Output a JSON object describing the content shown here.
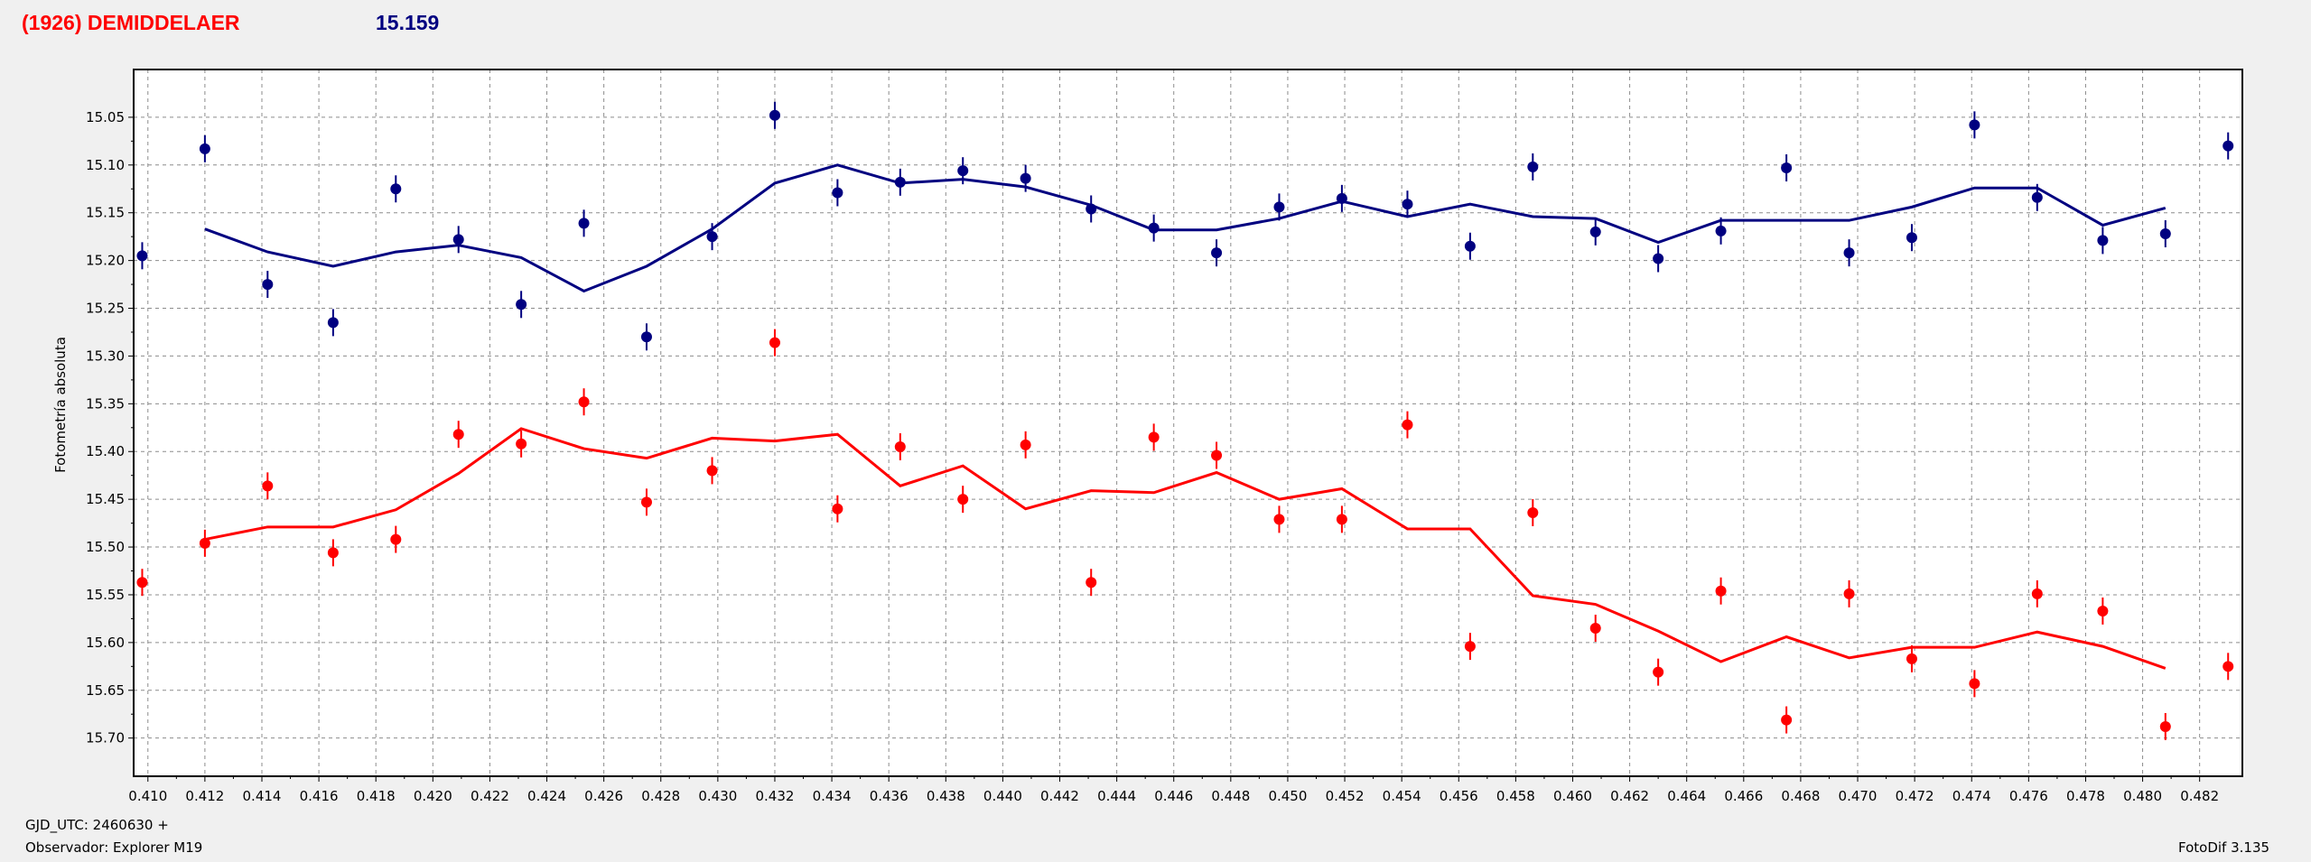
{
  "header": {
    "object_name": "(1926) DEMIDDELAER",
    "magnitude": "15.159"
  },
  "footer": {
    "gjd_label": "GJD_UTC: 2460630 +",
    "observer_label": "Observador: Explorer M19",
    "version_label": "FotoDif 3.135"
  },
  "chart_data": {
    "type": "scatter",
    "ylabel": "Fotometría absoluta",
    "xlim": [
      0.4095,
      0.4835
    ],
    "ylim": [
      15.0,
      15.74
    ],
    "y_inverted": true,
    "grid": true,
    "x_ticks": [
      "0.410",
      "0.412",
      "0.414",
      "0.416",
      "0.418",
      "0.420",
      "0.422",
      "0.424",
      "0.426",
      "0.428",
      "0.430",
      "0.432",
      "0.434",
      "0.436",
      "0.438",
      "0.440",
      "0.442",
      "0.444",
      "0.446",
      "0.448",
      "0.450",
      "0.452",
      "0.454",
      "0.456",
      "0.458",
      "0.460",
      "0.462",
      "0.464",
      "0.466",
      "0.468",
      "0.470",
      "0.472",
      "0.474",
      "0.476",
      "0.478",
      "0.480",
      "0.482"
    ],
    "y_ticks": [
      "15.05",
      "15.10",
      "15.15",
      "15.20",
      "15.25",
      "15.30",
      "15.35",
      "15.40",
      "15.45",
      "15.50",
      "15.55",
      "15.60",
      "15.65",
      "15.70"
    ],
    "series": [
      {
        "color": "#000080",
        "points": [
          [
            0.4098,
            15.195
          ],
          [
            0.412,
            15.083
          ],
          [
            0.4142,
            15.225
          ],
          [
            0.4165,
            15.265
          ],
          [
            0.4187,
            15.125
          ],
          [
            0.4209,
            15.178
          ],
          [
            0.4231,
            15.246
          ],
          [
            0.4253,
            15.161
          ],
          [
            0.4275,
            15.28
          ],
          [
            0.4298,
            15.175
          ],
          [
            0.432,
            15.048
          ],
          [
            0.4342,
            15.129
          ],
          [
            0.4364,
            15.118
          ],
          [
            0.4386,
            15.106
          ],
          [
            0.4408,
            15.114
          ],
          [
            0.4431,
            15.146
          ],
          [
            0.4453,
            15.166
          ],
          [
            0.4475,
            15.192
          ],
          [
            0.4497,
            15.144
          ],
          [
            0.4519,
            15.135
          ],
          [
            0.4542,
            15.141
          ],
          [
            0.4564,
            15.185
          ],
          [
            0.4586,
            15.102
          ],
          [
            0.4608,
            15.17
          ],
          [
            0.463,
            15.198
          ],
          [
            0.4652,
            15.169
          ],
          [
            0.4675,
            15.103
          ],
          [
            0.4697,
            15.192
          ],
          [
            0.4719,
            15.176
          ],
          [
            0.4741,
            15.058
          ],
          [
            0.4763,
            15.134
          ],
          [
            0.4786,
            15.179
          ],
          [
            0.4808,
            15.172
          ],
          [
            0.483,
            15.08
          ]
        ],
        "line": [
          [
            0.412,
            15.167
          ],
          [
            0.4142,
            15.191
          ],
          [
            0.4165,
            15.206
          ],
          [
            0.4187,
            15.191
          ],
          [
            0.4209,
            15.184
          ],
          [
            0.4231,
            15.197
          ],
          [
            0.4253,
            15.232
          ],
          [
            0.4275,
            15.206
          ],
          [
            0.4298,
            15.167
          ],
          [
            0.432,
            15.119
          ],
          [
            0.4342,
            15.1
          ],
          [
            0.4364,
            15.119
          ],
          [
            0.4386,
            15.115
          ],
          [
            0.4408,
            15.123
          ],
          [
            0.4431,
            15.142
          ],
          [
            0.4453,
            15.168
          ],
          [
            0.4475,
            15.168
          ],
          [
            0.4497,
            15.156
          ],
          [
            0.4519,
            15.138
          ],
          [
            0.4542,
            15.154
          ],
          [
            0.4564,
            15.141
          ],
          [
            0.4586,
            15.154
          ],
          [
            0.4608,
            15.156
          ],
          [
            0.463,
            15.181
          ],
          [
            0.4652,
            15.158
          ],
          [
            0.4675,
            15.158
          ],
          [
            0.4697,
            15.158
          ],
          [
            0.4719,
            15.144
          ],
          [
            0.4741,
            15.124
          ],
          [
            0.4763,
            15.124
          ],
          [
            0.4786,
            15.163
          ],
          [
            0.4808,
            15.145
          ]
        ]
      },
      {
        "color": "#ff0000",
        "points": [
          [
            0.4098,
            15.537
          ],
          [
            0.412,
            15.496
          ],
          [
            0.4142,
            15.436
          ],
          [
            0.4165,
            15.506
          ],
          [
            0.4187,
            15.492
          ],
          [
            0.4209,
            15.382
          ],
          [
            0.4231,
            15.392
          ],
          [
            0.4253,
            15.348
          ],
          [
            0.4275,
            15.453
          ],
          [
            0.4298,
            15.42
          ],
          [
            0.432,
            15.286
          ],
          [
            0.4342,
            15.46
          ],
          [
            0.4364,
            15.395
          ],
          [
            0.4386,
            15.45
          ],
          [
            0.4408,
            15.393
          ],
          [
            0.4431,
            15.537
          ],
          [
            0.4453,
            15.385
          ],
          [
            0.4475,
            15.404
          ],
          [
            0.4497,
            15.471
          ],
          [
            0.4519,
            15.471
          ],
          [
            0.4542,
            15.372
          ],
          [
            0.4564,
            15.604
          ],
          [
            0.4586,
            15.464
          ],
          [
            0.4608,
            15.585
          ],
          [
            0.463,
            15.631
          ],
          [
            0.4652,
            15.546
          ],
          [
            0.4675,
            15.681
          ],
          [
            0.4697,
            15.549
          ],
          [
            0.4719,
            15.617
          ],
          [
            0.4741,
            15.643
          ],
          [
            0.4763,
            15.549
          ],
          [
            0.4786,
            15.567
          ],
          [
            0.4808,
            15.688
          ],
          [
            0.483,
            15.625
          ]
        ],
        "line": [
          [
            0.412,
            15.492
          ],
          [
            0.4142,
            15.479
          ],
          [
            0.4165,
            15.479
          ],
          [
            0.4187,
            15.461
          ],
          [
            0.4209,
            15.423
          ],
          [
            0.4231,
            15.376
          ],
          [
            0.4253,
            15.397
          ],
          [
            0.4275,
            15.407
          ],
          [
            0.4298,
            15.386
          ],
          [
            0.432,
            15.389
          ],
          [
            0.4342,
            15.382
          ],
          [
            0.4364,
            15.436
          ],
          [
            0.4386,
            15.415
          ],
          [
            0.4408,
            15.46
          ],
          [
            0.4431,
            15.441
          ],
          [
            0.4453,
            15.443
          ],
          [
            0.4475,
            15.422
          ],
          [
            0.4497,
            15.45
          ],
          [
            0.4519,
            15.439
          ],
          [
            0.4542,
            15.481
          ],
          [
            0.4564,
            15.481
          ],
          [
            0.4586,
            15.551
          ],
          [
            0.4608,
            15.56
          ],
          [
            0.463,
            15.588
          ],
          [
            0.4652,
            15.62
          ],
          [
            0.4675,
            15.594
          ],
          [
            0.4697,
            15.616
          ],
          [
            0.4719,
            15.605
          ],
          [
            0.4741,
            15.605
          ],
          [
            0.4763,
            15.589
          ],
          [
            0.4786,
            15.604
          ],
          [
            0.4808,
            15.627
          ]
        ]
      }
    ]
  }
}
